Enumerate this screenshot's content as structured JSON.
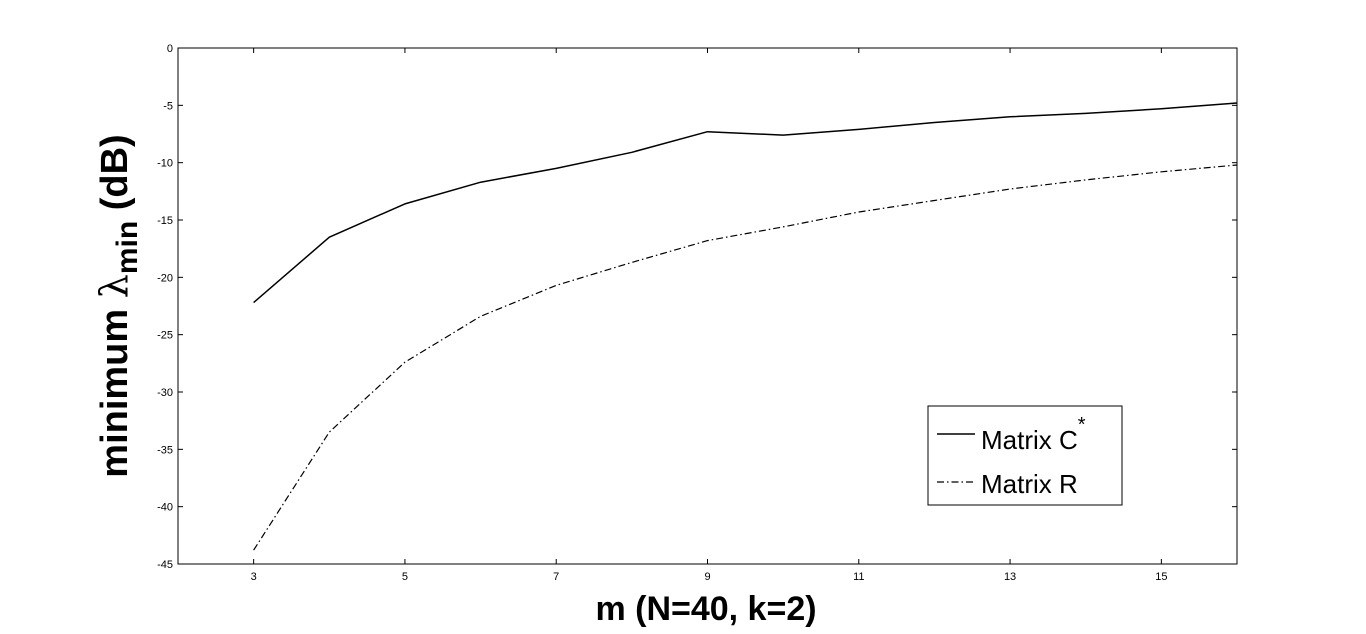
{
  "chart_data": {
    "type": "line",
    "title": "",
    "xlabel": "m (N=40, k=2)",
    "ylabel": {
      "prefix": "minimum ",
      "symbol": "λ",
      "subscript": "min",
      "suffix": " (dB)"
    },
    "xlim": [
      2,
      16
    ],
    "ylim": [
      -45,
      0
    ],
    "xticks": [
      3,
      5,
      7,
      9,
      11,
      13,
      15
    ],
    "yticks": [
      0,
      -5,
      -10,
      -15,
      -20,
      -25,
      -30,
      -35,
      -40,
      -45
    ],
    "grid": false,
    "legend_position": "bottom-right",
    "series": [
      {
        "name": "Matrix C",
        "name_superscript": "*",
        "style": "solid",
        "color": "#000000",
        "x": [
          3,
          4,
          5,
          6,
          7,
          8,
          9,
          10,
          11,
          12,
          13,
          14,
          15,
          16
        ],
        "y": [
          -22.2,
          -16.5,
          -13.6,
          -11.7,
          -10.5,
          -9.1,
          -7.3,
          -7.6,
          -7.1,
          -6.5,
          -6.0,
          -5.7,
          -5.3,
          -4.8
        ]
      },
      {
        "name": "Matrix R",
        "style": "dashdot",
        "color": "#000000",
        "x": [
          3,
          4,
          5,
          6,
          7,
          8,
          9,
          10,
          11,
          12,
          13,
          14,
          15,
          16
        ],
        "y": [
          -43.8,
          -33.5,
          -27.4,
          -23.4,
          -20.7,
          -18.7,
          -16.8,
          -15.6,
          -14.3,
          -13.3,
          -12.3,
          -11.5,
          -10.8,
          -10.2
        ]
      }
    ]
  }
}
